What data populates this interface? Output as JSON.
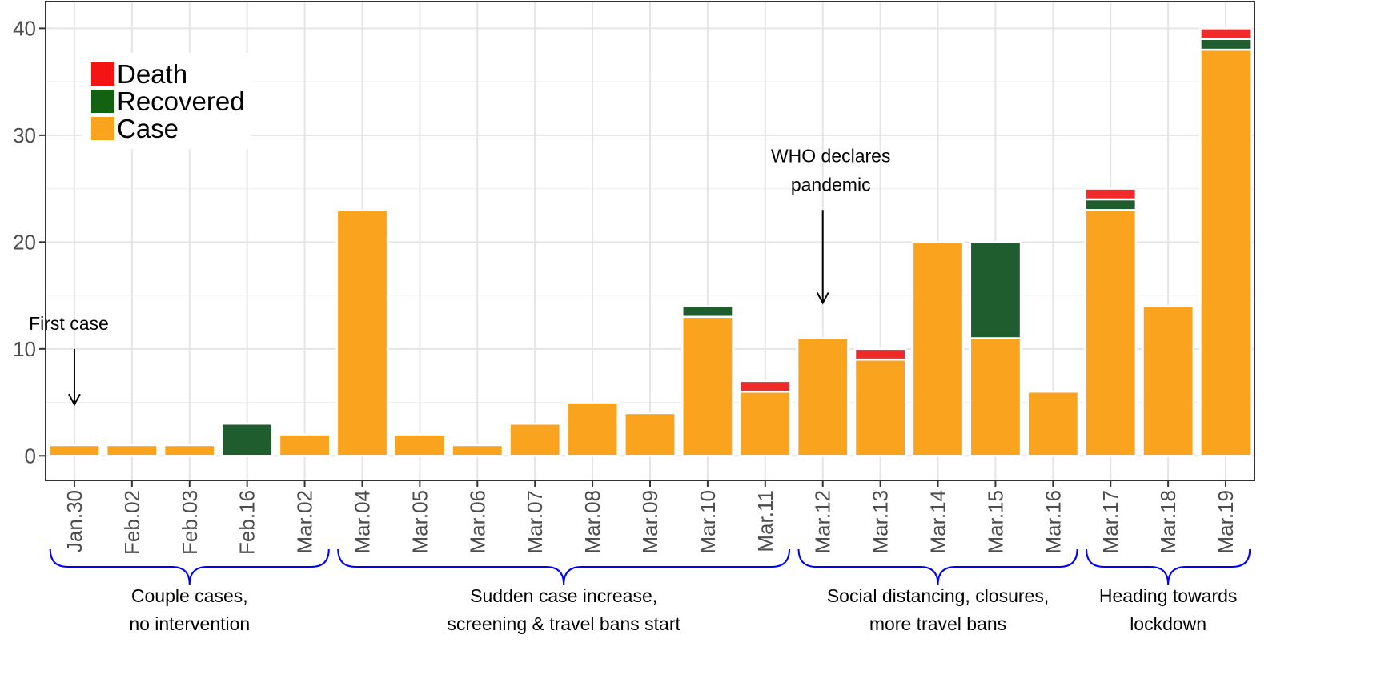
{
  "chart_data": {
    "type": "bar",
    "stacked": true,
    "title": "",
    "xlabel": "",
    "ylabel": "",
    "ylim": [
      -2.3,
      42.5
    ],
    "yticks": [
      0,
      10,
      20,
      30,
      40
    ],
    "grid": true,
    "legend_position": "top-left",
    "categories": [
      "Jan.30",
      "Feb.02",
      "Feb.03",
      "Feb.16",
      "Mar.02",
      "Mar.04",
      "Mar.05",
      "Mar.06",
      "Mar.07",
      "Mar.08",
      "Mar.09",
      "Mar.10",
      "Mar.11",
      "Mar.12",
      "Mar.13",
      "Mar.14",
      "Mar.15",
      "Mar.16",
      "Mar.17",
      "Mar.18",
      "Mar.19"
    ],
    "series": [
      {
        "name": "Case",
        "color": "#f9a31f",
        "values": [
          1,
          1,
          1,
          0,
          2,
          23,
          2,
          1,
          3,
          5,
          4,
          13,
          6,
          11,
          9,
          20,
          11,
          6,
          23,
          14,
          38
        ]
      },
      {
        "name": "Recovered",
        "color": "#1f5c2e",
        "values": [
          0,
          0,
          0,
          3,
          0,
          0,
          0,
          0,
          0,
          0,
          0,
          1,
          0,
          0,
          0,
          0,
          9,
          0,
          1,
          0,
          1
        ]
      },
      {
        "name": "Death",
        "color": "#ee2a2a",
        "values": [
          0,
          0,
          0,
          0,
          0,
          0,
          0,
          0,
          0,
          0,
          0,
          0,
          1,
          0,
          1,
          0,
          0,
          0,
          1,
          0,
          1
        ]
      }
    ],
    "legend": [
      {
        "label": "Death",
        "color": "#f41414"
      },
      {
        "label": "Recovered",
        "color": "#136212"
      },
      {
        "label": "Case",
        "color": "#f9a31f"
      }
    ],
    "annotations": [
      {
        "lines": [
          "First case"
        ],
        "category": "Jan.30",
        "arrow_from_y": 10,
        "arrow_to_y": 4.8
      },
      {
        "lines": [
          "WHO declares",
          "pandemic"
        ],
        "category": "Mar.12",
        "arrow_from_y": 23,
        "arrow_to_y": 14.3
      }
    ],
    "periods": [
      {
        "lines": [
          "Couple cases,",
          "no intervention"
        ],
        "from": "Jan.30",
        "to": "Mar.02"
      },
      {
        "lines": [
          "Sudden case increase,",
          "screening & travel bans start"
        ],
        "from": "Mar.04",
        "to": "Mar.11"
      },
      {
        "lines": [
          "Social distancing, closures,",
          "more travel bans"
        ],
        "from": "Mar.12",
        "to": "Mar.16"
      },
      {
        "lines": [
          "Heading towards",
          "lockdown"
        ],
        "from": "Mar.17",
        "to": "Mar.19"
      }
    ],
    "brace_color": "#0000ff"
  }
}
